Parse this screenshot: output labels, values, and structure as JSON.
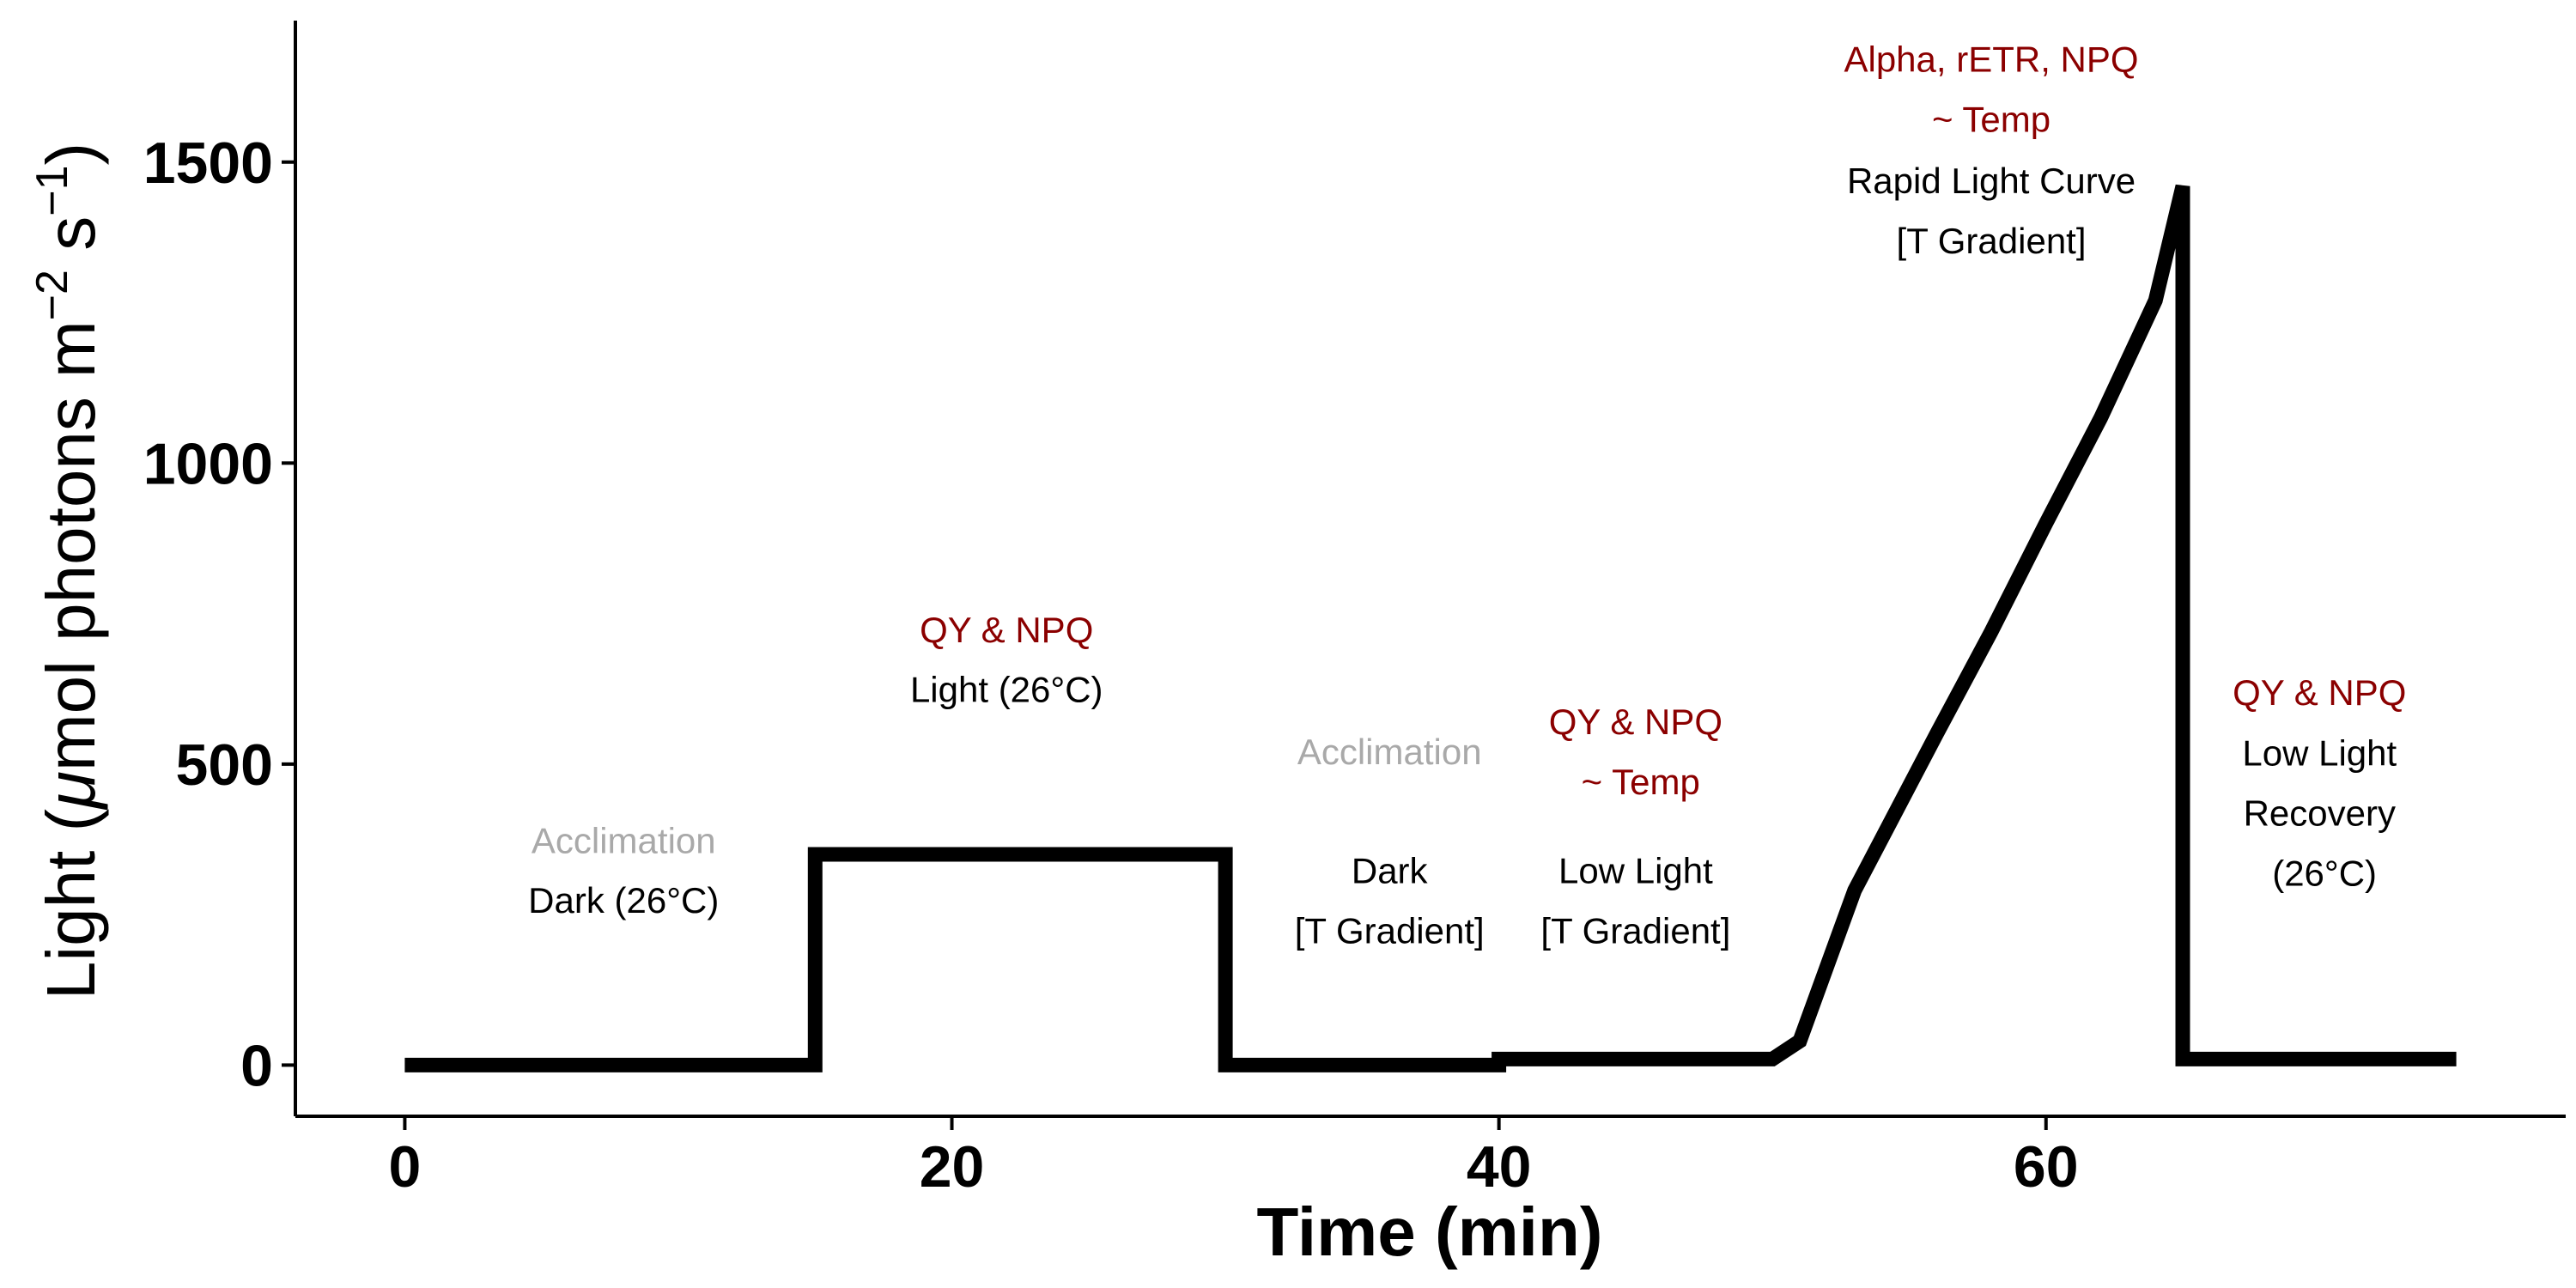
{
  "chart_data": {
    "type": "line",
    "title": "",
    "xlabel": "Time (min)",
    "ylabel": {
      "prefix": "Light (",
      "mu": "μ",
      "main": "mol photons m",
      "exp1": "−2",
      "mid": " s",
      "exp2": "−1",
      "suffix": ")"
    },
    "xlim": [
      -4,
      79
    ],
    "ylim": [
      -85,
      1735
    ],
    "x_ticks": [
      0,
      20,
      40,
      60
    ],
    "y_ticks": [
      0,
      500,
      1000,
      1500
    ],
    "grid": false,
    "legend": "none",
    "series": [
      {
        "color": "#000000",
        "x": [
          0,
          15,
          15,
          30,
          30,
          40,
          40,
          50,
          51,
          53,
          56,
          58,
          60,
          62,
          64,
          65,
          65,
          75
        ],
        "y": [
          0,
          0,
          350,
          350,
          0,
          0,
          10,
          10,
          40,
          290,
          550,
          720,
          900,
          1075,
          1270,
          1460,
          10,
          10
        ]
      }
    ],
    "annotations": [
      {
        "x": 8,
        "y": 352,
        "lines": [
          "Acclimation"
        ],
        "color": "#a9a9a9"
      },
      {
        "x": 8,
        "y": 253,
        "lines": [
          "Dark (26°C)"
        ],
        "color": "#000000"
      },
      {
        "x": 22,
        "y": 702,
        "lines": [
          "QY & NPQ"
        ],
        "color": "#8b0000"
      },
      {
        "x": 22,
        "y": 603,
        "lines": [
          "Light (26°C)"
        ],
        "color": "#000000"
      },
      {
        "x": 36,
        "y": 500,
        "lines": [
          "Acclimation"
        ],
        "color": "#a9a9a9"
      },
      {
        "x": 36,
        "y": 302,
        "lines": [
          "Dark",
          "[T Gradient]"
        ],
        "color": "#000000"
      },
      {
        "x": 45,
        "y": 550,
        "lines": [
          "QY & NPQ",
          " ~ Temp"
        ],
        "color": "#8b0000"
      },
      {
        "x": 45,
        "y": 302,
        "lines": [
          "Low Light",
          "[T Gradient]"
        ],
        "color": "#000000"
      },
      {
        "x": 58,
        "y": 1650,
        "lines": [
          "Alpha, rETR, NPQ",
          "~ Temp"
        ],
        "color": "#8b0000"
      },
      {
        "x": 58,
        "y": 1448,
        "lines": [
          "Rapid Light Curve",
          "[T Gradient]"
        ],
        "color": "#000000"
      },
      {
        "x": 70,
        "y": 598,
        "lines": [
          "QY & NPQ"
        ],
        "color": "#8b0000"
      },
      {
        "x": 70,
        "y": 498,
        "lines": [
          "Low Light",
          "Recovery",
          " (26°C)"
        ],
        "color": "#000000"
      }
    ]
  }
}
